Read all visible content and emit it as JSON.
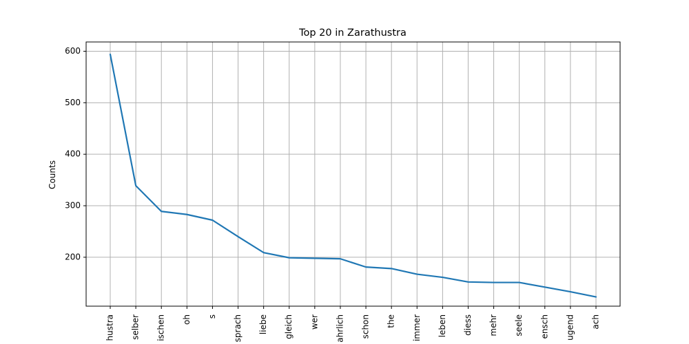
{
  "chart_data": {
    "type": "line",
    "title": "Top 20 in Zarathustra",
    "ylabel": "Counts",
    "xlabel": "",
    "categories": [
      "hustra",
      "selber",
      "ischen",
      "oh",
      "s",
      "sprach",
      "liebe",
      "gleich",
      "wer",
      "ahrlich",
      "schon",
      "the",
      "immer",
      "leben",
      "diess",
      "mehr",
      "seele",
      "ensch",
      "ugend",
      "ach"
    ],
    "values": [
      594,
      339,
      289,
      283,
      272,
      240,
      209,
      199,
      198,
      197,
      181,
      178,
      167,
      161,
      152,
      151,
      151,
      142,
      133,
      123
    ],
    "yticks": [
      200,
      300,
      400,
      500,
      600
    ],
    "ylim": [
      105,
      618
    ],
    "grid": true,
    "colors": {
      "line": "#1f77b4",
      "grid": "#b0b0b0",
      "axis": "#000000"
    }
  }
}
